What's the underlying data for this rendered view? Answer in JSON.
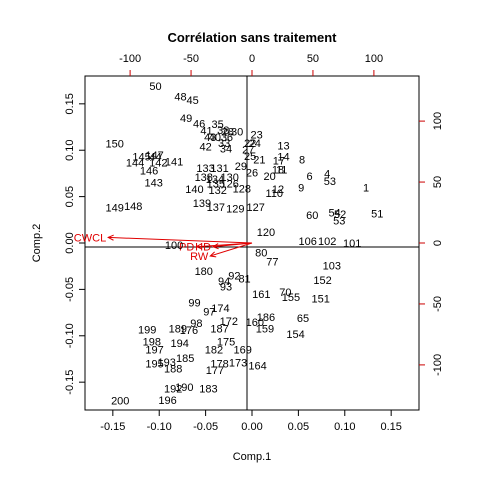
{
  "chart_data": {
    "type": "scatter",
    "title": "Corrélation sans traitement",
    "xlabel": "Comp.1",
    "ylabel": "Comp.2",
    "xlim": [
      -0.18,
      0.18
    ],
    "ylim": [
      -0.18,
      0.18
    ],
    "x_ticks": [
      "-0.15",
      "-0.10",
      "-0.05",
      "0.00",
      "0.05",
      "0.10",
      "0.15"
    ],
    "y_ticks": [
      "-0.15",
      "-0.10",
      "-0.05",
      "0.00",
      "0.05",
      "0.10",
      "0.15"
    ],
    "top_ticks": [
      "-100",
      "-50",
      "0",
      "50",
      "100"
    ],
    "right_ticks": [
      "-100",
      "-50",
      "0",
      "50",
      "100"
    ],
    "secondary_lim": [
      -137,
      137
    ],
    "colors": {
      "points": "#000000",
      "variables": "#e00000",
      "secondary_axes": "#cc0000"
    },
    "points": [
      {
        "label": "50",
        "x": -0.104,
        "y": 0.169
      },
      {
        "label": "48",
        "x": -0.077,
        "y": 0.158
      },
      {
        "label": "45",
        "x": -0.064,
        "y": 0.154
      },
      {
        "label": "49",
        "x": -0.071,
        "y": 0.135
      },
      {
        "label": "46",
        "x": -0.057,
        "y": 0.129
      },
      {
        "label": "35",
        "x": -0.037,
        "y": 0.128
      },
      {
        "label": "41",
        "x": -0.049,
        "y": 0.121
      },
      {
        "label": "38",
        "x": -0.031,
        "y": 0.122
      },
      {
        "label": "28",
        "x": -0.026,
        "y": 0.12
      },
      {
        "label": "30",
        "x": -0.016,
        "y": 0.12
      },
      {
        "label": "43",
        "x": -0.045,
        "y": 0.114
      },
      {
        "label": "40",
        "x": -0.04,
        "y": 0.114
      },
      {
        "label": "36",
        "x": -0.027,
        "y": 0.114
      },
      {
        "label": "23",
        "x": 0.005,
        "y": 0.117
      },
      {
        "label": "33",
        "x": -0.03,
        "y": 0.108
      },
      {
        "label": "22",
        "x": -0.002,
        "y": 0.108
      },
      {
        "label": "24",
        "x": 0.003,
        "y": 0.108
      },
      {
        "label": "150",
        "x": -0.148,
        "y": 0.107
      },
      {
        "label": "42",
        "x": -0.05,
        "y": 0.104
      },
      {
        "label": "34",
        "x": -0.028,
        "y": 0.102
      },
      {
        "label": "27",
        "x": -0.004,
        "y": 0.101
      },
      {
        "label": "13",
        "x": 0.034,
        "y": 0.105
      },
      {
        "label": "25",
        "x": -0.002,
        "y": 0.094
      },
      {
        "label": "21",
        "x": 0.008,
        "y": 0.09
      },
      {
        "label": "14",
        "x": 0.034,
        "y": 0.093
      },
      {
        "label": "17",
        "x": 0.029,
        "y": 0.089
      },
      {
        "label": "8",
        "x": 0.054,
        "y": 0.09
      },
      {
        "label": "145",
        "x": -0.119,
        "y": 0.093
      },
      {
        "label": "147",
        "x": -0.105,
        "y": 0.095
      },
      {
        "label": "44",
        "x": -0.104,
        "y": 0.093
      },
      {
        "label": "144",
        "x": -0.126,
        "y": 0.087
      },
      {
        "label": "142",
        "x": -0.101,
        "y": 0.087
      },
      {
        "label": "141",
        "x": -0.084,
        "y": 0.088
      },
      {
        "label": "29",
        "x": -0.012,
        "y": 0.083
      },
      {
        "label": "133",
        "x": -0.05,
        "y": 0.081
      },
      {
        "label": "131",
        "x": -0.035,
        "y": 0.081
      },
      {
        "label": "18",
        "x": 0.028,
        "y": 0.079
      },
      {
        "label": "11",
        "x": 0.032,
        "y": 0.079
      },
      {
        "label": "146",
        "x": -0.111,
        "y": 0.078
      },
      {
        "label": "26",
        "x": 0.0,
        "y": 0.076
      },
      {
        "label": "20",
        "x": 0.019,
        "y": 0.072
      },
      {
        "label": "4",
        "x": 0.081,
        "y": 0.075
      },
      {
        "label": "6",
        "x": 0.062,
        "y": 0.072
      },
      {
        "label": "53",
        "x": 0.084,
        "y": 0.067
      },
      {
        "label": "138",
        "x": -0.052,
        "y": 0.071
      },
      {
        "label": "134",
        "x": -0.04,
        "y": 0.069
      },
      {
        "label": "130",
        "x": -0.024,
        "y": 0.071
      },
      {
        "label": "143",
        "x": -0.106,
        "y": 0.065
      },
      {
        "label": "135",
        "x": -0.039,
        "y": 0.064
      },
      {
        "label": "126",
        "x": -0.024,
        "y": 0.064
      },
      {
        "label": "140",
        "x": -0.062,
        "y": 0.058
      },
      {
        "label": "132",
        "x": -0.037,
        "y": 0.057
      },
      {
        "label": "128",
        "x": -0.011,
        "y": 0.059
      },
      {
        "label": "9",
        "x": 0.053,
        "y": 0.06
      },
      {
        "label": "1",
        "x": 0.123,
        "y": 0.06
      },
      {
        "label": "12",
        "x": 0.028,
        "y": 0.058
      },
      {
        "label": "110",
        "x": 0.024,
        "y": 0.054
      },
      {
        "label": "149",
        "x": -0.148,
        "y": 0.038
      },
      {
        "label": "148",
        "x": -0.128,
        "y": 0.04
      },
      {
        "label": "139",
        "x": -0.054,
        "y": 0.043
      },
      {
        "label": "137",
        "x": -0.039,
        "y": 0.039
      },
      {
        "label": "129",
        "x": -0.018,
        "y": 0.037
      },
      {
        "label": "127",
        "x": 0.004,
        "y": 0.039
      },
      {
        "label": "51",
        "x": 0.135,
        "y": 0.032
      },
      {
        "label": "54",
        "x": 0.089,
        "y": 0.033
      },
      {
        "label": "52",
        "x": 0.095,
        "y": 0.031
      },
      {
        "label": "60",
        "x": 0.065,
        "y": 0.03
      },
      {
        "label": "53",
        "x": 0.094,
        "y": 0.024
      },
      {
        "label": "120",
        "x": 0.015,
        "y": 0.012
      },
      {
        "label": "100",
        "x": -0.084,
        "y": -0.002
      },
      {
        "label": "101",
        "x": 0.108,
        "y": 0.0
      },
      {
        "label": "102",
        "x": 0.081,
        "y": 0.002
      },
      {
        "label": "106",
        "x": 0.06,
        "y": 0.002
      },
      {
        "label": "103",
        "x": 0.086,
        "y": -0.024
      },
      {
        "label": "152",
        "x": 0.076,
        "y": -0.04
      },
      {
        "label": "151",
        "x": 0.074,
        "y": -0.06
      },
      {
        "label": "155",
        "x": 0.042,
        "y": -0.058
      },
      {
        "label": "65",
        "x": 0.055,
        "y": -0.081
      },
      {
        "label": "154",
        "x": 0.047,
        "y": -0.098
      },
      {
        "label": "161",
        "x": 0.01,
        "y": -0.055
      },
      {
        "label": "70",
        "x": 0.036,
        "y": -0.053
      },
      {
        "label": "180",
        "x": -0.052,
        "y": -0.03
      },
      {
        "label": "99",
        "x": -0.062,
        "y": -0.064
      },
      {
        "label": "97",
        "x": -0.046,
        "y": -0.074
      },
      {
        "label": "174",
        "x": -0.034,
        "y": -0.07
      },
      {
        "label": "98",
        "x": -0.06,
        "y": -0.086
      },
      {
        "label": "172",
        "x": -0.025,
        "y": -0.084
      },
      {
        "label": "187",
        "x": -0.035,
        "y": -0.092
      },
      {
        "label": "199",
        "x": -0.113,
        "y": -0.093
      },
      {
        "label": "189",
        "x": -0.08,
        "y": -0.092
      },
      {
        "label": "176",
        "x": -0.068,
        "y": -0.094
      },
      {
        "label": "186",
        "x": 0.015,
        "y": -0.08
      },
      {
        "label": "160",
        "x": 0.003,
        "y": -0.085
      },
      {
        "label": "159",
        "x": 0.014,
        "y": -0.092
      },
      {
        "label": "198",
        "x": -0.108,
        "y": -0.106
      },
      {
        "label": "194",
        "x": -0.078,
        "y": -0.108
      },
      {
        "label": "175",
        "x": -0.028,
        "y": -0.106
      },
      {
        "label": "197",
        "x": -0.105,
        "y": -0.115
      },
      {
        "label": "182",
        "x": -0.041,
        "y": -0.115
      },
      {
        "label": "169",
        "x": -0.01,
        "y": -0.115
      },
      {
        "label": "195",
        "x": -0.105,
        "y": -0.13
      },
      {
        "label": "193",
        "x": -0.092,
        "y": -0.128
      },
      {
        "label": "185",
        "x": -0.072,
        "y": -0.124
      },
      {
        "label": "178",
        "x": -0.035,
        "y": -0.13
      },
      {
        "label": "173",
        "x": -0.015,
        "y": -0.129
      },
      {
        "label": "164",
        "x": 0.006,
        "y": -0.132
      },
      {
        "label": "188",
        "x": -0.085,
        "y": -0.135
      },
      {
        "label": "177",
        "x": -0.04,
        "y": -0.137
      },
      {
        "label": "192",
        "x": -0.085,
        "y": -0.157
      },
      {
        "label": "190",
        "x": -0.073,
        "y": -0.155
      },
      {
        "label": "183",
        "x": -0.047,
        "y": -0.157
      },
      {
        "label": "196",
        "x": -0.091,
        "y": -0.169
      },
      {
        "label": "200",
        "x": -0.142,
        "y": -0.17
      },
      {
        "label": "93",
        "x": -0.028,
        "y": -0.047
      },
      {
        "label": "92",
        "x": -0.019,
        "y": -0.035
      },
      {
        "label": "94",
        "x": -0.03,
        "y": -0.041
      },
      {
        "label": "81",
        "x": -0.008,
        "y": -0.038
      },
      {
        "label": "80",
        "x": 0.01,
        "y": -0.01
      },
      {
        "label": "77",
        "x": 0.022,
        "y": -0.02
      }
    ],
    "variables": [
      {
        "label": "CWCL",
        "x": -0.155,
        "y": 0.006
      },
      {
        "label": "PD",
        "x": -0.06,
        "y": -0.004
      },
      {
        "label": "HD",
        "x": -0.042,
        "y": -0.004
      },
      {
        "label": "RW",
        "x": -0.045,
        "y": -0.014
      }
    ]
  }
}
